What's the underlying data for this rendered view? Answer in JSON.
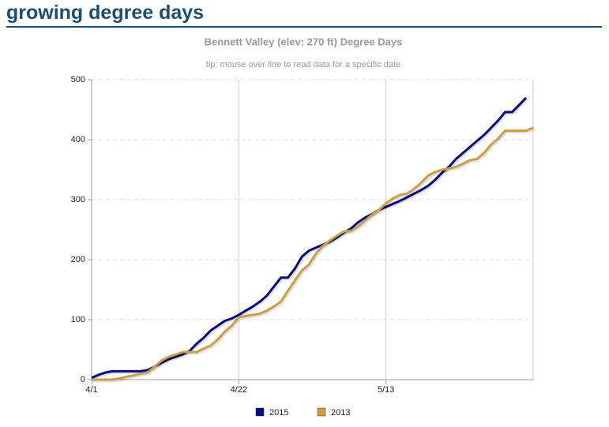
{
  "header": {
    "title": "growing degree days"
  },
  "chart_data": {
    "type": "line",
    "title": "Bennett Valley (elev: 270 ft) Degree Days",
    "subtitle": "tip: mouse over line to read data for a specific date",
    "categories": [
      "4/1",
      "4/2",
      "4/3",
      "4/4",
      "4/5",
      "4/6",
      "4/7",
      "4/8",
      "4/9",
      "4/10",
      "4/11",
      "4/12",
      "4/13",
      "4/14",
      "4/15",
      "4/16",
      "4/17",
      "4/18",
      "4/19",
      "4/20",
      "4/21",
      "4/22",
      "4/23",
      "4/24",
      "4/25",
      "4/26",
      "4/27",
      "4/28",
      "4/29",
      "4/30",
      "5/1",
      "5/2",
      "5/3",
      "5/4",
      "5/5",
      "5/6",
      "5/7",
      "5/8",
      "5/9",
      "5/10",
      "5/11",
      "5/12",
      "5/13",
      "5/14",
      "5/15",
      "5/16",
      "5/17",
      "5/18",
      "5/19",
      "5/20",
      "5/21",
      "5/22",
      "5/23",
      "5/24",
      "5/25",
      "5/26",
      "5/27",
      "5/28",
      "5/29",
      "5/30",
      "5/31",
      "6/1",
      "6/2",
      "6/3"
    ],
    "xticks": [
      "4/1",
      "4/22",
      "5/13"
    ],
    "series": [
      {
        "name": "2015",
        "color": "#0a0a80",
        "values": [
          3,
          8,
          12,
          14,
          14,
          14,
          14,
          14,
          16,
          22,
          28,
          34,
          38,
          42,
          48,
          60,
          70,
          82,
          90,
          98,
          102,
          108,
          115,
          122,
          130,
          140,
          155,
          170,
          170,
          185,
          205,
          215,
          220,
          225,
          230,
          237,
          245,
          252,
          262,
          270,
          276,
          283,
          288,
          293,
          298,
          304,
          310,
          316,
          323,
          333,
          345,
          355,
          368,
          378,
          388,
          398,
          408,
          420,
          432,
          446,
          446,
          458,
          470,
          null
        ]
      },
      {
        "name": "2013",
        "color": "#c9a043",
        "values": [
          0,
          0,
          0,
          0,
          2,
          5,
          7,
          10,
          12,
          22,
          32,
          38,
          42,
          46,
          46,
          46,
          52,
          57,
          67,
          80,
          90,
          104,
          106,
          108,
          110,
          115,
          122,
          130,
          148,
          165,
          182,
          192,
          210,
          223,
          232,
          240,
          247,
          248,
          255,
          265,
          275,
          283,
          294,
          302,
          308,
          310,
          318,
          328,
          340,
          346,
          350,
          352,
          355,
          360,
          366,
          368,
          378,
          392,
          402,
          415,
          415,
          415,
          415,
          420
        ]
      }
    ],
    "ylim": [
      0,
      500
    ],
    "yticks": [
      0,
      100,
      200,
      300,
      400,
      500
    ],
    "grid": true,
    "legend": "bottom"
  }
}
